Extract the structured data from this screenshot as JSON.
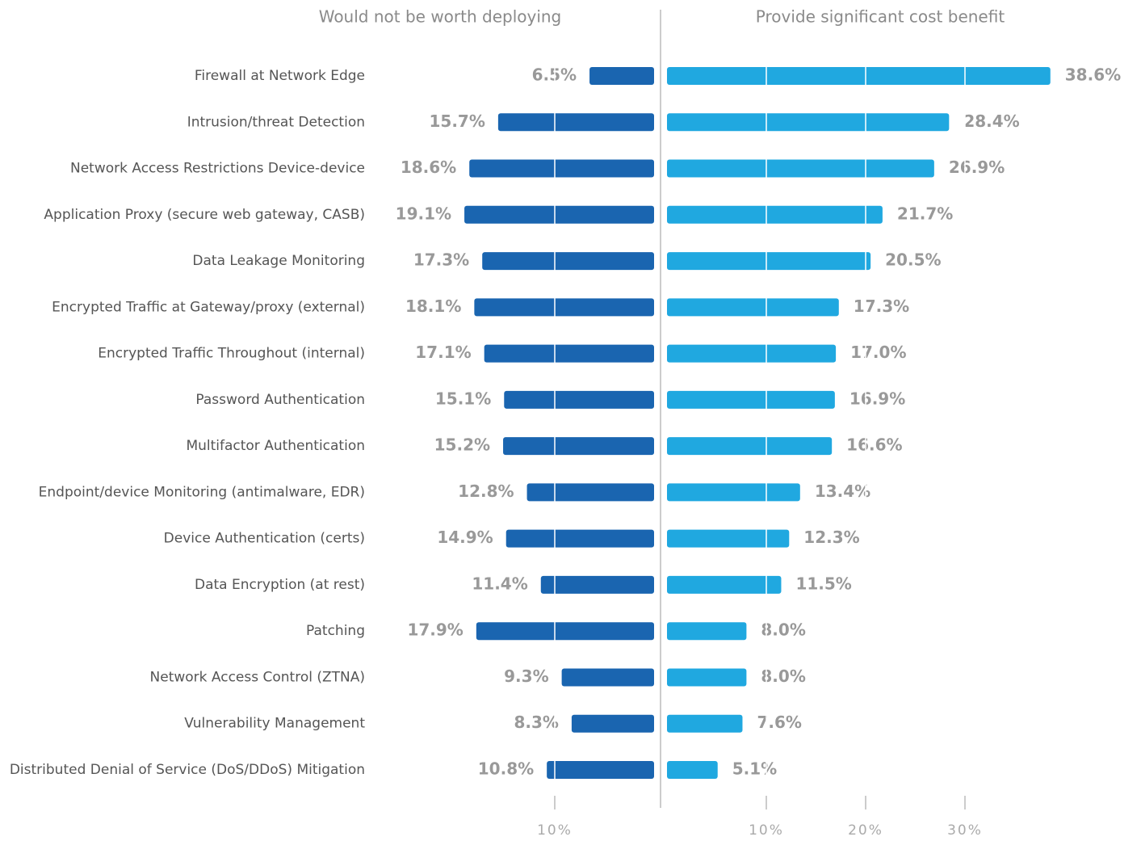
{
  "chart_data": {
    "type": "butterfly",
    "categories": [
      "Firewall at Network Edge",
      "Intrusion/threat Detection",
      "Network Access Restrictions Device-device",
      "Application Proxy (secure web gateway, CASB)",
      "Data Leakage Monitoring",
      "Encrypted Traffic at Gateway/proxy (external)",
      "Encrypted Traffic Throughout (internal)",
      "Password Authentication",
      "Multifactor Authentication",
      "Endpoint/device Monitoring (antimalware, EDR)",
      "Device Authentication (certs)",
      "Data Encryption (at rest)",
      "Patching",
      "Network Access Control (ZTNA)",
      "Vulnerability Management",
      "Distributed Denial of Service (DoS/DDoS) Mitigation"
    ],
    "series": [
      {
        "name": "Would not be worth deploying",
        "color": "#1a65b0",
        "values": [
          6.5,
          15.7,
          18.6,
          19.1,
          17.3,
          18.1,
          17.1,
          15.1,
          15.2,
          12.8,
          14.9,
          11.4,
          17.9,
          9.3,
          8.3,
          10.8
        ],
        "value_labels": [
          "6.5%",
          "15.7%",
          "18.6%",
          "19.1%",
          "17.3%",
          "18.1%",
          "17.1%",
          "15.1%",
          "15.2%",
          "12.8%",
          "14.9%",
          "11.4%",
          "17.9%",
          "9.3%",
          "8.3%",
          "10.8%"
        ],
        "xlim": [
          0,
          20
        ],
        "xticks": [
          {
            "value": 10,
            "label": "10%"
          }
        ]
      },
      {
        "name": "Provide significant cost benefit",
        "color": "#20a8e0",
        "values": [
          38.6,
          28.4,
          26.9,
          21.7,
          20.5,
          17.3,
          17.0,
          16.9,
          16.6,
          13.4,
          12.3,
          11.5,
          8.0,
          8.0,
          7.6,
          5.1
        ],
        "value_labels": [
          "38.6%",
          "28.4%",
          "26.9%",
          "21.7%",
          "20.5%",
          "17.3%",
          "17.0%",
          "16.9%",
          "16.6%",
          "13.4%",
          "12.3%",
          "11.5%",
          "8.0%",
          "8.0%",
          "7.6%",
          "5.1%"
        ],
        "xlim": [
          0,
          40
        ],
        "xticks": [
          {
            "value": 10,
            "label": "10%"
          },
          {
            "value": 20,
            "label": "20%"
          },
          {
            "value": 30,
            "label": "30%"
          }
        ]
      }
    ]
  }
}
